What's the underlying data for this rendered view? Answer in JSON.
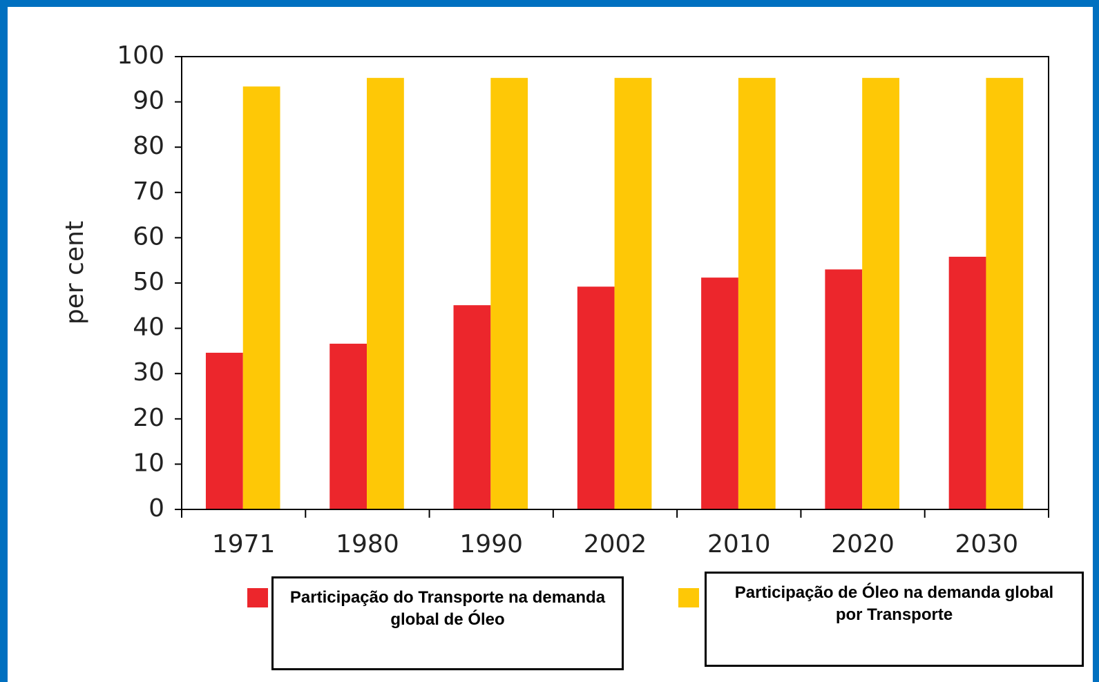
{
  "chart_data": {
    "type": "bar",
    "y_label": "per cent",
    "categories": [
      "1971",
      "1980",
      "1990",
      "2002",
      "2010",
      "2020",
      "2030"
    ],
    "series": [
      {
        "name": "Participação do Transporte na demanda global de Óleo",
        "color": "#ec262c",
        "values": [
          34.6,
          36.6,
          45.1,
          49.2,
          51.2,
          53.0,
          55.8
        ]
      },
      {
        "name": "Participação de Óleo na demanda global por Transporte",
        "color": "#fec806",
        "values": [
          93.4,
          95.3,
          95.3,
          95.3,
          95.3,
          95.3,
          95.3
        ]
      }
    ],
    "ylim": [
      0,
      100
    ],
    "yticks": [
      0,
      10,
      20,
      30,
      40,
      50,
      60,
      70,
      80,
      90,
      100
    ]
  }
}
